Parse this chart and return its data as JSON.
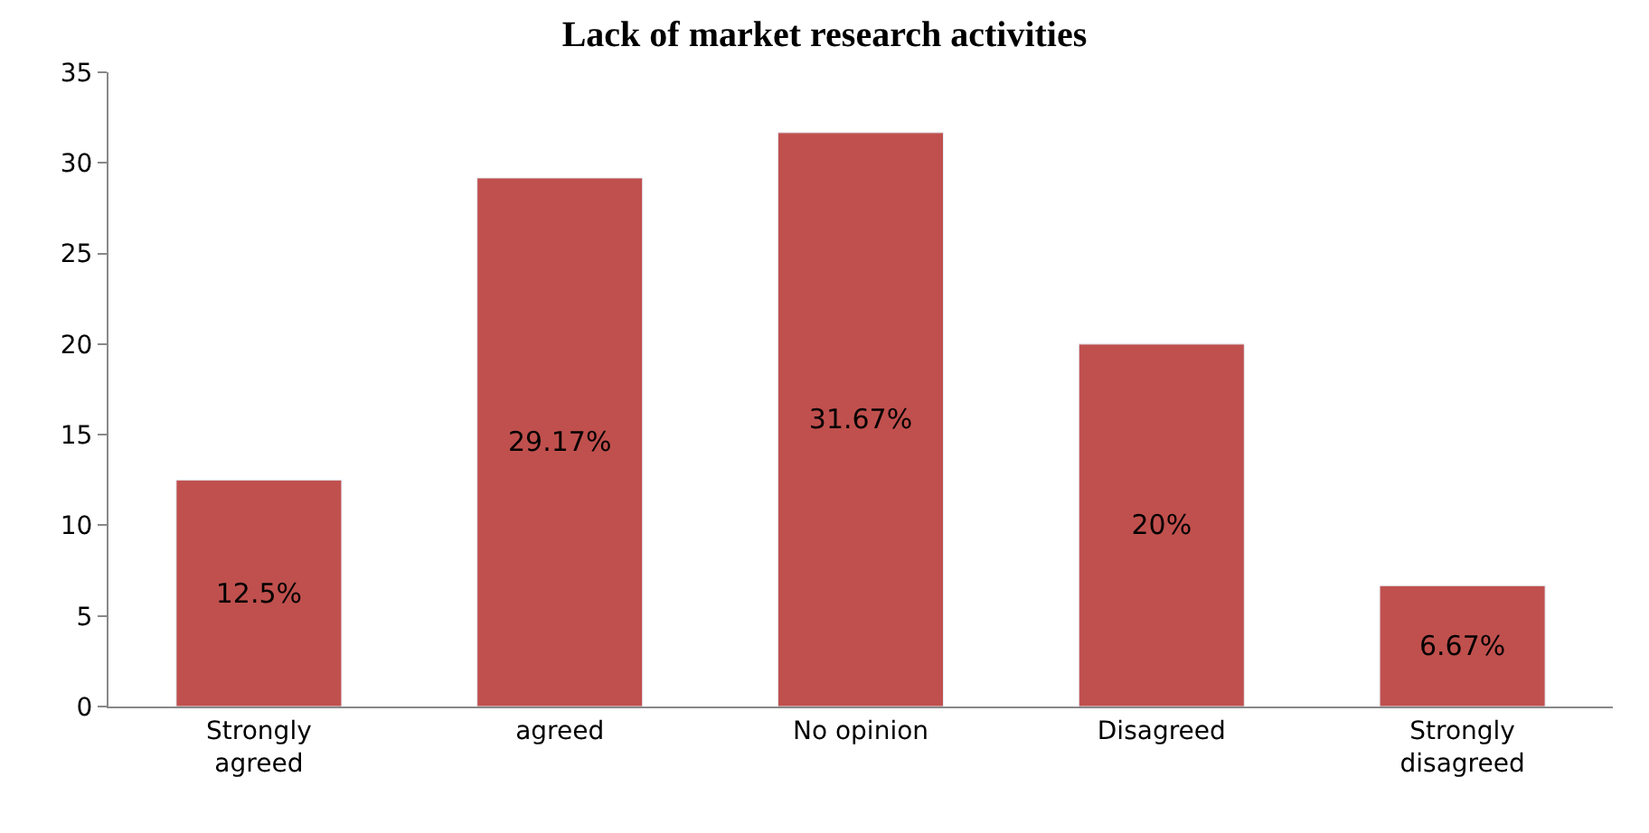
{
  "chart_data": {
    "type": "bar",
    "title": "Lack of market research activities",
    "categories": [
      "Strongly agreed",
      "agreed",
      "No opinion",
      "Disagreed",
      "Strongly disagreed"
    ],
    "values": [
      12.5,
      29.17,
      31.67,
      20,
      6.67
    ],
    "value_labels": [
      "12.5%",
      "29.17%",
      "31.67%",
      "20%",
      "6.67%"
    ],
    "color": "#c0504d",
    "ylim": [
      0,
      35
    ],
    "yticks": [
      0,
      5,
      10,
      15,
      20,
      25,
      30,
      35
    ]
  }
}
